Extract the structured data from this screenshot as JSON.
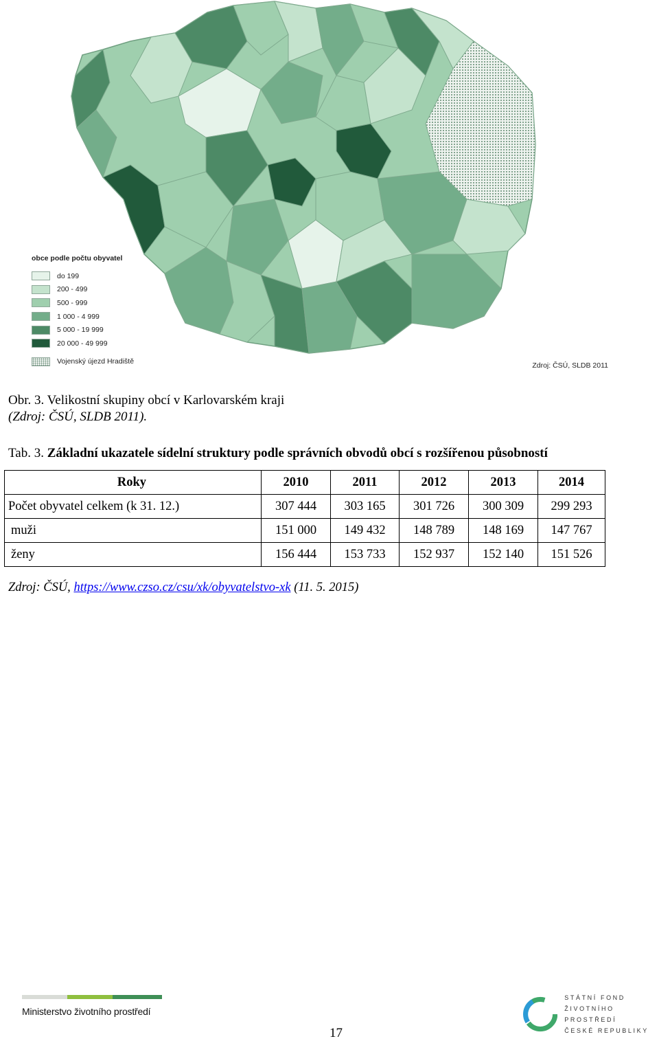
{
  "map": {
    "legend_title": "obce podle počtu obyvatel",
    "legend": [
      {
        "label": "do 199",
        "color": "#e6f3ea"
      },
      {
        "label": "200 - 499",
        "color": "#c4e3cd"
      },
      {
        "label": "500 - 999",
        "color": "#9fcfae"
      },
      {
        "label": "1 000 - 4 999",
        "color": "#73ad8a"
      },
      {
        "label": "5 000 - 19 999",
        "color": "#4d8a66"
      },
      {
        "label": "20 000 - 49 999",
        "color": "#215a3b"
      }
    ],
    "military_label": "Vojenský újezd Hradiště",
    "source": "Zdroj: ČSÚ, SLDB 2011"
  },
  "figure": {
    "caption": "Obr. 3. Velikostní skupiny obcí v Karlovarském kraji",
    "source": "(Zdroj: ČSÚ, SLDB 2011)."
  },
  "table_caption": {
    "label": "Tab. 3.",
    "text": "Základní ukazatele sídelní struktury podle správních obvodů obcí s rozšířenou působností"
  },
  "table": {
    "header_label": "Roky",
    "years": [
      "2010",
      "2011",
      "2012",
      "2013",
      "2014"
    ],
    "rows": [
      {
        "label": "Počet obyvatel celkem (k 31. 12.)",
        "values": [
          "307 444",
          "303 165",
          "301 726",
          "300 309",
          "299 293"
        ]
      },
      {
        "label": "muži",
        "values": [
          "151 000",
          "149 432",
          "148 789",
          "148 169",
          "147 767"
        ]
      },
      {
        "label": "ženy",
        "values": [
          "156 444",
          "153 733",
          "152 937",
          "152 140",
          "151 526"
        ]
      }
    ]
  },
  "table_source": {
    "prefix": "Zdroj: ČSÚ,",
    "link": "https://www.czso.cz/csu/xk/obyvatelstvo-xk",
    "suffix": "(11. 5. 2015)"
  },
  "footer": {
    "ministry": "Ministerstvo životního prostředí",
    "fund_lines": [
      "STÁTNÍ FOND",
      "ŽIVOTNÍHO PROSTŘEDÍ",
      "ČESKÉ REPUBLIKY"
    ],
    "page_number": "17",
    "bar_colors": [
      "#d9dcd7",
      "#8fbf3f",
      "#3f8f56"
    ]
  }
}
